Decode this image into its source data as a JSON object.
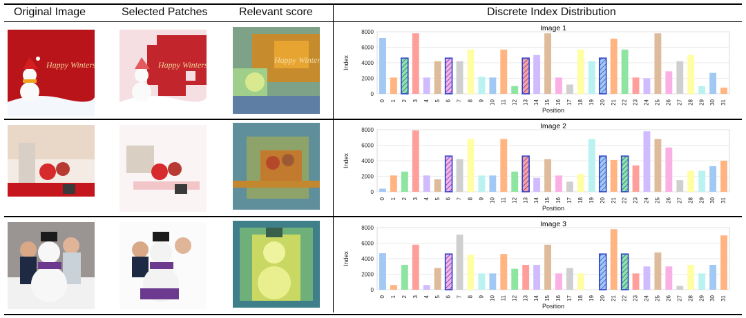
{
  "headers": {
    "original": "Original Image",
    "selected": "Selected Patches",
    "relevant": "Relevant score",
    "distribution": "Discrete Index Distribution"
  },
  "colors": {
    "palette": [
      "#a1c9f4",
      "#ffb482",
      "#8de5a1",
      "#ff9f9b",
      "#d0bbff",
      "#debb9b",
      "#fab0e4",
      "#cfcfcf",
      "#fffea3",
      "#b9f2f0"
    ],
    "highlight_stroke": "#2b3fc7"
  },
  "chart_data": [
    {
      "type": "bar",
      "title": "Image 1",
      "xlabel": "Position",
      "ylabel": "Index",
      "ylim": [
        0,
        8000
      ],
      "yticks": [
        0,
        2000,
        4000,
        6000,
        8000
      ],
      "categories": [
        "0",
        "1",
        "2",
        "3",
        "4",
        "5",
        "6",
        "7",
        "8",
        "9",
        "10",
        "11",
        "12",
        "13",
        "14",
        "15",
        "16",
        "17",
        "18",
        "19",
        "20",
        "21",
        "22",
        "23",
        "24",
        "25",
        "26",
        "27",
        "28",
        "29",
        "30",
        "31"
      ],
      "values": [
        7200,
        2100,
        4600,
        7800,
        2100,
        4200,
        4600,
        4200,
        5700,
        2200,
        2100,
        5700,
        1000,
        4600,
        5000,
        7800,
        2100,
        1200,
        5700,
        4200,
        4600,
        7100,
        5700,
        2100,
        2000,
        7800,
        2900,
        4200,
        5000,
        1000,
        2700,
        800
      ],
      "highlighted_positions": [
        2,
        6,
        13,
        20
      ]
    },
    {
      "type": "bar",
      "title": "Image 2",
      "xlabel": "Position",
      "ylabel": "Index",
      "ylim": [
        0,
        8000
      ],
      "yticks": [
        0,
        2000,
        4000,
        6000,
        8000
      ],
      "categories": [
        "0",
        "1",
        "2",
        "3",
        "4",
        "5",
        "6",
        "7",
        "8",
        "9",
        "10",
        "11",
        "12",
        "13",
        "14",
        "15",
        "16",
        "17",
        "18",
        "19",
        "20",
        "21",
        "22",
        "23",
        "24",
        "25",
        "26",
        "27",
        "28",
        "29",
        "30",
        "31"
      ],
      "values": [
        400,
        2100,
        2600,
        7900,
        2100,
        1600,
        4600,
        4200,
        6800,
        2100,
        2100,
        6800,
        2600,
        4600,
        1800,
        4200,
        2100,
        1300,
        2300,
        6800,
        4600,
        4100,
        4600,
        3400,
        7800,
        6800,
        5700,
        1500,
        2700,
        2700,
        3300,
        4000
      ],
      "highlighted_positions": [
        6,
        13,
        20,
        22
      ]
    },
    {
      "type": "bar",
      "title": "Image 3",
      "xlabel": "Position",
      "ylabel": "Index",
      "ylim": [
        0,
        8000
      ],
      "yticks": [
        0,
        2000,
        4000,
        6000,
        8000
      ],
      "categories": [
        "0",
        "1",
        "2",
        "3",
        "4",
        "5",
        "6",
        "7",
        "8",
        "9",
        "10",
        "11",
        "12",
        "13",
        "14",
        "15",
        "16",
        "17",
        "18",
        "19",
        "20",
        "21",
        "22",
        "23",
        "24",
        "25",
        "26",
        "27",
        "28",
        "29",
        "30",
        "31"
      ],
      "values": [
        4700,
        600,
        3200,
        5800,
        600,
        2800,
        4600,
        7100,
        4500,
        2100,
        2100,
        4600,
        2700,
        3200,
        3200,
        5800,
        2100,
        2800,
        2100,
        0,
        4600,
        7800,
        4600,
        2100,
        3000,
        4800,
        3000,
        500,
        3200,
        2100,
        3200,
        7000
      ],
      "highlighted_positions": [
        6,
        20,
        22
      ]
    }
  ]
}
